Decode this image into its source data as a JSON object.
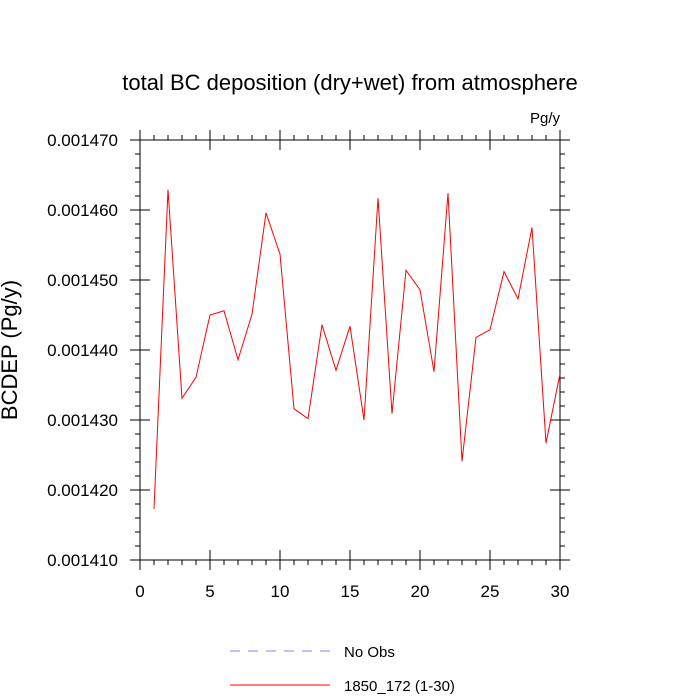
{
  "chart_data": {
    "type": "line",
    "title": "total BC deposition (dry+wet) from atmosphere",
    "units": "Pg/y",
    "ylabel": "BCDEP  (Pg/y)",
    "xlabel": "",
    "xlim": [
      0,
      30
    ],
    "ylim": [
      0.00141,
      0.00147
    ],
    "xticks": [
      0,
      5,
      10,
      15,
      20,
      25,
      30
    ],
    "yticks": [
      0.00141,
      0.00142,
      0.00143,
      0.00144,
      0.00145,
      0.00146,
      0.00147
    ],
    "ytick_labels": [
      "0.001410",
      "0.001420",
      "0.001430",
      "0.001440",
      "0.001450",
      "0.001460",
      "0.001470"
    ],
    "grid": false,
    "legend_position": "bottom",
    "legend": [
      {
        "label": "No Obs",
        "color": "#8080ff",
        "style": "dashed"
      },
      {
        "label": "1850_172 (1-30)",
        "color": "#ff0000",
        "style": "solid"
      }
    ],
    "series": [
      {
        "name": "1850_172 (1-30)",
        "color": "#ff0000",
        "x": [
          1,
          2,
          3,
          4,
          5,
          6,
          7,
          8,
          9,
          10,
          11,
          12,
          13,
          14,
          15,
          16,
          17,
          18,
          19,
          20,
          21,
          22,
          23,
          24,
          25,
          26,
          27,
          28,
          29,
          30
        ],
        "y": [
          0.0014173,
          0.0014629,
          0.0014331,
          0.0014361,
          0.001445,
          0.0014456,
          0.0014386,
          0.0014451,
          0.0014596,
          0.0014537,
          0.0014316,
          0.0014302,
          0.0014436,
          0.0014371,
          0.0014434,
          0.00143,
          0.0014617,
          0.0014309,
          0.0014514,
          0.0014486,
          0.0014369,
          0.0014624,
          0.0014241,
          0.0014418,
          0.0014429,
          0.0014512,
          0.0014473,
          0.0014575,
          0.0014267,
          0.0014366
        ]
      }
    ]
  }
}
